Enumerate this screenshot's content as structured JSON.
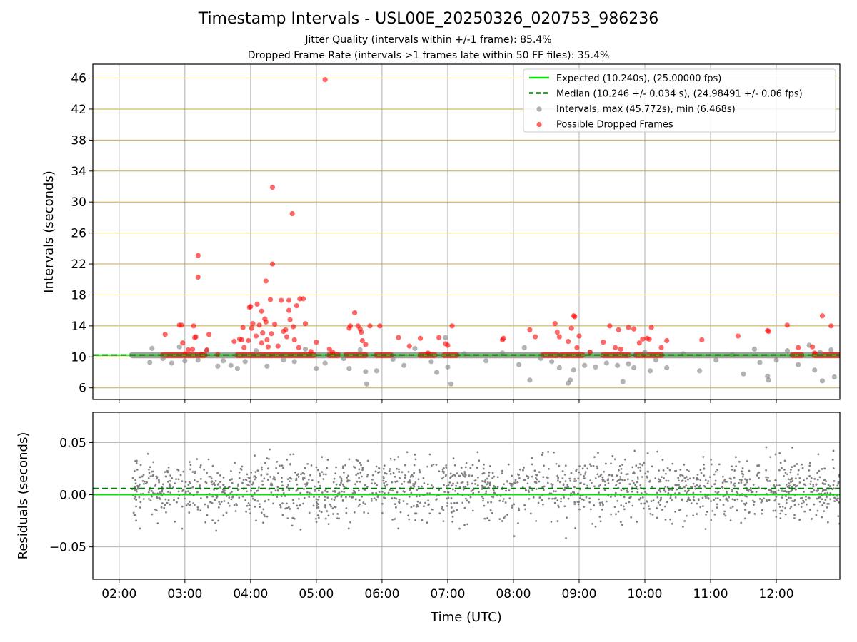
{
  "title": "Timestamp Intervals - USL00E_20250326_020753_986236",
  "subtitle_1": "Jitter Quality (intervals within +/-1 frame): 85.4%",
  "subtitle_2": "Dropped Frame Rate (intervals >1 frames late within 50 FF files): 35.4%",
  "colors": {
    "expected": "#00e600",
    "median": "#007a00",
    "intervals": "#808080",
    "dropped": "#ff0000",
    "hgrid_top": "#c8a84a",
    "vgrid": "#b0b0b0"
  },
  "chart_data": [
    {
      "type": "scatter",
      "ylabel": "Intervals (seconds)",
      "ylim": [
        4.5,
        47.8
      ],
      "yticks": [
        6,
        10,
        14,
        18,
        22,
        26,
        30,
        34,
        38,
        42,
        46
      ],
      "xlim": [
        "01:36",
        "12:58"
      ],
      "grid": true,
      "legend_position": "top-right",
      "legend": [
        "Expected (10.240s), (25.00000 fps)",
        "Median (10.246 +/- 0.034 s), (24.98491 +/- 0.06 fps)",
        "Intervals, max (45.772s), min (6.468s)",
        "Possible Dropped Frames"
      ],
      "expected_interval": 10.24,
      "median_interval": 10.246,
      "series": [
        {
          "name": "Intervals, max (45.772s), min (6.468s)",
          "points": [
            [
              "02:28",
              9.3
            ],
            [
              "02:30",
              11.1
            ],
            [
              "02:40",
              9.8
            ],
            [
              "02:48",
              9.2
            ],
            [
              "02:55",
              11.3
            ],
            [
              "03:00",
              9.5
            ],
            [
              "03:12",
              9.6
            ],
            [
              "03:20",
              10.8
            ],
            [
              "03:30",
              8.8
            ],
            [
              "03:35",
              9.5
            ],
            [
              "03:42",
              8.9
            ],
            [
              "03:48",
              8.5
            ],
            [
              "03:55",
              9.4
            ],
            [
              "04:05",
              10.8
            ],
            [
              "04:15",
              8.8
            ],
            [
              "04:30",
              9.6
            ],
            [
              "04:40",
              9.4
            ],
            [
              "04:50",
              11.0
            ],
            [
              "05:00",
              8.5
            ],
            [
              "05:08",
              9.2
            ],
            [
              "05:25",
              9.8
            ],
            [
              "05:30",
              8.5
            ],
            [
              "05:40",
              10.9
            ],
            [
              "05:45",
              8.1
            ],
            [
              "05:46",
              6.5
            ],
            [
              "05:55",
              8.2
            ],
            [
              "06:10",
              9.7
            ],
            [
              "06:20",
              8.9
            ],
            [
              "06:30",
              11.1
            ],
            [
              "06:45",
              9.4
            ],
            [
              "06:50",
              8.0
            ],
            [
              "06:58",
              12.5
            ],
            [
              "07:00",
              8.7
            ],
            [
              "07:03",
              6.5
            ],
            [
              "07:15",
              10.4
            ],
            [
              "07:35",
              9.5
            ],
            [
              "07:50",
              10.5
            ],
            [
              "08:05",
              9.0
            ],
            [
              "08:10",
              11.2
            ],
            [
              "08:15",
              7.0
            ],
            [
              "08:25",
              9.8
            ],
            [
              "08:35",
              9.4
            ],
            [
              "08:42",
              8.6
            ],
            [
              "08:50",
              6.6
            ],
            [
              "08:52",
              7.0
            ],
            [
              "08:55",
              8.3
            ],
            [
              "09:05",
              8.9
            ],
            [
              "09:10",
              10.6
            ],
            [
              "09:15",
              8.7
            ],
            [
              "09:25",
              9.2
            ],
            [
              "09:35",
              8.9
            ],
            [
              "09:40",
              6.8
            ],
            [
              "09:45",
              9.1
            ],
            [
              "09:50",
              8.6
            ],
            [
              "10:00",
              10.6
            ],
            [
              "10:05",
              8.2
            ],
            [
              "10:10",
              9.6
            ],
            [
              "10:20",
              8.6
            ],
            [
              "10:35",
              10.4
            ],
            [
              "10:50",
              8.2
            ],
            [
              "11:05",
              9.6
            ],
            [
              "11:20",
              10.3
            ],
            [
              "11:30",
              7.8
            ],
            [
              "11:40",
              11.0
            ],
            [
              "11:45",
              9.3
            ],
            [
              "11:52",
              7.5
            ],
            [
              "11:53",
              7.0
            ],
            [
              "12:00",
              9.6
            ],
            [
              "12:10",
              10.8
            ],
            [
              "12:20",
              9.0
            ],
            [
              "12:30",
              11.5
            ],
            [
              "12:35",
              8.3
            ],
            [
              "12:40",
              10.6
            ],
            [
              "12:42",
              6.9
            ],
            [
              "12:50",
              10.9
            ],
            [
              "12:53",
              7.4
            ]
          ]
        },
        {
          "name": "Possible Dropped Frames",
          "points": [
            [
              "02:42",
              12.9
            ],
            [
              "02:55",
              14.1
            ],
            [
              "02:57",
              14.1
            ],
            [
              "02:58",
              11.8
            ],
            [
              "03:00",
              10.4
            ],
            [
              "03:03",
              10.9
            ],
            [
              "03:07",
              11.0
            ],
            [
              "03:08",
              14.0
            ],
            [
              "03:09",
              12.5
            ],
            [
              "03:10",
              12.6
            ],
            [
              "03:12",
              23.1
            ],
            [
              "03:12",
              20.3
            ],
            [
              "03:15",
              10.3
            ],
            [
              "03:20",
              10.9
            ],
            [
              "03:22",
              12.9
            ],
            [
              "03:30",
              10.3
            ],
            [
              "03:45",
              12.0
            ],
            [
              "03:50",
              12.3
            ],
            [
              "03:52",
              12.2
            ],
            [
              "03:53",
              13.8
            ],
            [
              "03:54",
              11.2
            ],
            [
              "03:58",
              12.1
            ],
            [
              "03:59",
              16.4
            ],
            [
              "04:00",
              16.5
            ],
            [
              "04:01",
              13.7
            ],
            [
              "04:02",
              14.3
            ],
            [
              "04:05",
              12.7
            ],
            [
              "04:06",
              16.8
            ],
            [
              "04:08",
              14.1
            ],
            [
              "04:10",
              11.8
            ],
            [
              "04:10",
              15.9
            ],
            [
              "04:11",
              13.1
            ],
            [
              "04:13",
              14.9
            ],
            [
              "04:14",
              14.5
            ],
            [
              "04:14",
              19.8
            ],
            [
              "04:15",
              12.2
            ],
            [
              "04:16",
              11.3
            ],
            [
              "04:18",
              17.4
            ],
            [
              "04:19",
              13.0
            ],
            [
              "04:20",
              31.9
            ],
            [
              "04:20",
              22.0
            ],
            [
              "04:22",
              14.2
            ],
            [
              "04:25",
              11.4
            ],
            [
              "04:28",
              17.3
            ],
            [
              "04:30",
              13.3
            ],
            [
              "04:32",
              13.5
            ],
            [
              "04:33",
              12.6
            ],
            [
              "04:35",
              16.0
            ],
            [
              "04:35",
              17.3
            ],
            [
              "04:36",
              14.8
            ],
            [
              "04:38",
              28.5
            ],
            [
              "04:39",
              13.9
            ],
            [
              "04:40",
              12.2
            ],
            [
              "04:42",
              16.6
            ],
            [
              "04:44",
              11.2
            ],
            [
              "04:45",
              17.5
            ],
            [
              "04:48",
              17.5
            ],
            [
              "04:50",
              14.3
            ],
            [
              "04:55",
              10.7
            ],
            [
              "05:00",
              11.9
            ],
            [
              "05:08",
              45.8
            ],
            [
              "05:12",
              11.0
            ],
            [
              "05:15",
              10.6
            ],
            [
              "05:30",
              13.7
            ],
            [
              "05:31",
              14.0
            ],
            [
              "05:35",
              15.7
            ],
            [
              "05:38",
              14.0
            ],
            [
              "05:40",
              13.6
            ],
            [
              "05:41",
              13.2
            ],
            [
              "05:42",
              12.1
            ],
            [
              "05:45",
              11.6
            ],
            [
              "05:49",
              14.0
            ],
            [
              "05:58",
              14.0
            ],
            [
              "06:15",
              12.5
            ],
            [
              "06:25",
              11.4
            ],
            [
              "06:35",
              12.4
            ],
            [
              "06:42",
              10.5
            ],
            [
              "06:52",
              12.5
            ],
            [
              "06:58",
              11.7
            ],
            [
              "07:00",
              11.5
            ],
            [
              "07:04",
              14.0
            ],
            [
              "07:50",
              12.2
            ],
            [
              "07:51",
              12.4
            ],
            [
              "08:15",
              13.5
            ],
            [
              "08:20",
              12.6
            ],
            [
              "08:38",
              14.3
            ],
            [
              "08:40",
              13.2
            ],
            [
              "08:42",
              12.6
            ],
            [
              "08:50",
              12.0
            ],
            [
              "08:53",
              13.7
            ],
            [
              "08:55",
              15.3
            ],
            [
              "08:56",
              15.2
            ],
            [
              "08:58",
              11.2
            ],
            [
              "09:00",
              12.7
            ],
            [
              "09:10",
              10.6
            ],
            [
              "09:22",
              11.9
            ],
            [
              "09:28",
              14.0
            ],
            [
              "09:33",
              11.2
            ],
            [
              "09:36",
              13.5
            ],
            [
              "09:38",
              11.0
            ],
            [
              "09:45",
              13.8
            ],
            [
              "09:50",
              13.6
            ],
            [
              "09:55",
              11.8
            ],
            [
              "09:58",
              12.3
            ],
            [
              "10:02",
              12.4
            ],
            [
              "10:04",
              12.3
            ],
            [
              "10:06",
              13.8
            ],
            [
              "10:15",
              11.2
            ],
            [
              "10:20",
              12.1
            ],
            [
              "10:52",
              12.2
            ],
            [
              "11:25",
              12.7
            ],
            [
              "11:52",
              13.4
            ],
            [
              "11:53",
              13.3
            ],
            [
              "12:10",
              14.1
            ],
            [
              "12:20",
              11.2
            ],
            [
              "12:33",
              11.3
            ],
            [
              "12:35",
              10.5
            ],
            [
              "12:42",
              15.3
            ],
            [
              "12:50",
              14.0
            ]
          ]
        }
      ]
    },
    {
      "type": "scatter",
      "xlabel": "Time (UTC)",
      "ylabel": "Residuals (seconds)",
      "ylim": [
        -0.081,
        0.079
      ],
      "yticks": [
        -0.05,
        0.0,
        0.05
      ],
      "ytick_labels": [
        "−0.05",
        "0.00",
        "0.05"
      ],
      "xticks": [
        "02:00",
        "03:00",
        "04:00",
        "05:00",
        "06:00",
        "07:00",
        "08:00",
        "09:00",
        "10:00",
        "11:00",
        "12:00"
      ],
      "xlim": [
        "01:36",
        "12:58"
      ],
      "grid": true,
      "expected_residual": 0.0,
      "median_residual": 0.006,
      "residual_summary": {
        "x_range": [
          "02:12",
          "12:58"
        ],
        "spread": 0.034,
        "count_shown": 1800
      }
    }
  ]
}
